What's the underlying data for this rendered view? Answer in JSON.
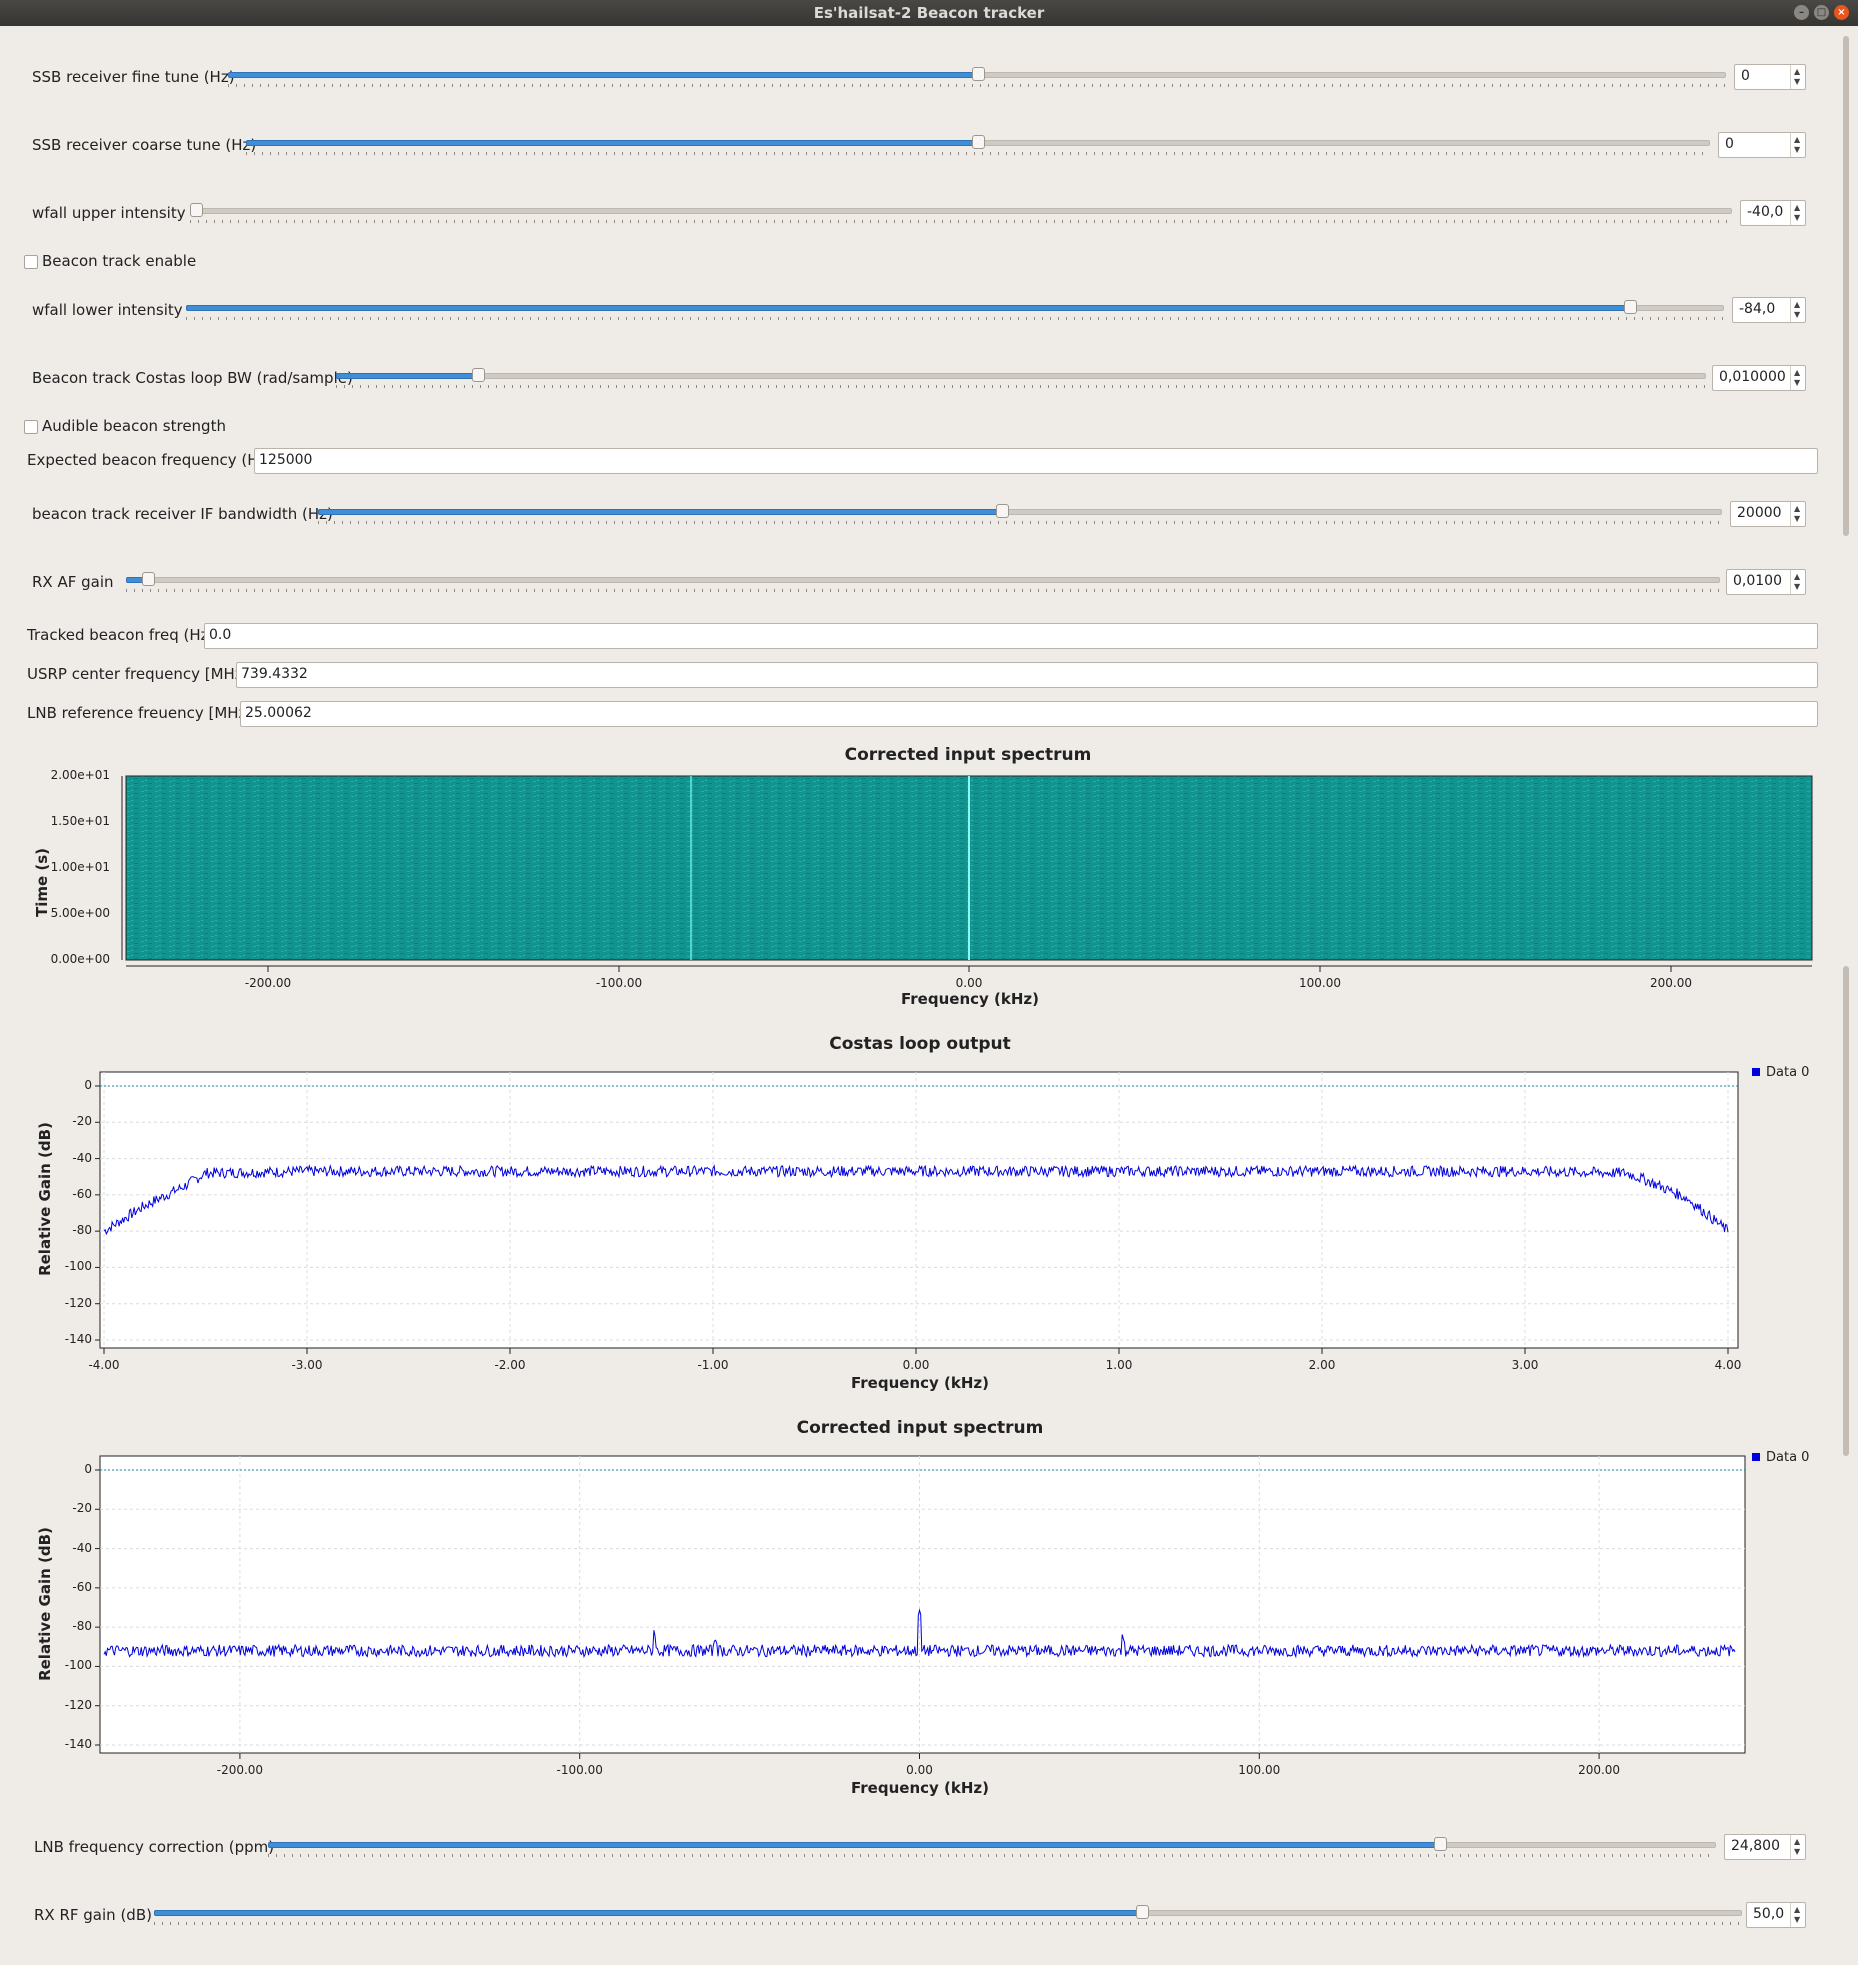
{
  "window": {
    "title": "Es'hailsat-2 Beacon tracker"
  },
  "controls": {
    "fine_tune": {
      "label": "SSB receiver fine tune (Hz)",
      "value": "0"
    },
    "coarse_tune": {
      "label": "SSB receiver coarse tune (Hz)",
      "value": "0"
    },
    "wfall_upper": {
      "label": "wfall upper intensity",
      "value": "-40,0"
    },
    "beacon_track_enable": {
      "label": "Beacon track enable",
      "checked": false
    },
    "wfall_lower": {
      "label": "wfall lower intensity",
      "value": "-84,0"
    },
    "costas_bw": {
      "label": "Beacon track Costas loop BW (rad/sample)",
      "value": "0,010000"
    },
    "audible_strength": {
      "label": "Audible beacon strength",
      "checked": false
    },
    "expected_freq": {
      "label": "Expected beacon frequency (Hz):",
      "value": "125000"
    },
    "if_bandwidth": {
      "label": "beacon track receiver IF bandwidth (Hz)",
      "value": "20000"
    },
    "rx_af_gain": {
      "label": "RX AF gain",
      "value": "0,0100"
    },
    "tracked_freq": {
      "label": "Tracked beacon freq (Hz):",
      "value": "0.0"
    },
    "usrp_center": {
      "label": "USRP center frequency [MHz]:",
      "value": "739.4332"
    },
    "lnb_ref": {
      "label": "LNB reference freuency [MHz]:",
      "value": "25.00062"
    },
    "lnb_correction": {
      "label": "LNB frequency correction (ppm)",
      "value": "24,800"
    },
    "rx_rf_gain": {
      "label": "RX RF gain (dB)",
      "value": "50,0"
    }
  },
  "waterfall": {
    "title": "Corrected input spectrum",
    "xlabel": "Frequency (kHz)",
    "ylabel": "Time (s)",
    "yticks": [
      "2.00e+01",
      "1.50e+01",
      "1.00e+01",
      "5.00e+00",
      "0.00e+00"
    ],
    "xticks": [
      "-200.00",
      "-100.00",
      "0.00",
      "100.00",
      "200.00"
    ],
    "colors": {
      "background": "#11948f",
      "line": "#7ff2ea"
    }
  },
  "chart_data": [
    {
      "type": "line",
      "title": "Costas loop output",
      "xlabel": "Frequency (kHz)",
      "ylabel": "Relative Gain (dB)",
      "xlim": [
        -4.0,
        4.0
      ],
      "ylim": [
        -140,
        0
      ],
      "xticks": [
        "-4.00",
        "-3.00",
        "-2.00",
        "-1.00",
        "0.00",
        "1.00",
        "2.00",
        "3.00",
        "4.00"
      ],
      "yticks": [
        "0",
        "-20",
        "-40",
        "-60",
        "-80",
        "-100",
        "-120",
        "-140"
      ],
      "series": [
        {
          "name": "Data 0",
          "color": "#0000dd",
          "x": [
            -4.0,
            -3.8,
            -3.6,
            -3.5,
            -3.0,
            -2.0,
            -1.0,
            0.0,
            1.0,
            2.0,
            3.0,
            3.5,
            3.6,
            3.8,
            4.0
          ],
          "y": [
            -80,
            -66,
            -55,
            -48,
            -47,
            -47,
            -47,
            -47,
            -47,
            -47,
            -47,
            -48,
            -52,
            -62,
            -80
          ]
        }
      ],
      "reference_line": 0,
      "legend": "top-right"
    },
    {
      "type": "line",
      "title": "Corrected input spectrum",
      "xlabel": "Frequency (kHz)",
      "ylabel": "Relative Gain (dB)",
      "xlim": [
        -240,
        240
      ],
      "ylim": [
        -140,
        0
      ],
      "xticks": [
        "-200.00",
        "-100.00",
        "0.00",
        "100.00",
        "200.00"
      ],
      "yticks": [
        "0",
        "-20",
        "-40",
        "-60",
        "-80",
        "-100",
        "-120",
        "-140"
      ],
      "series": [
        {
          "name": "Data 0",
          "color": "#0000dd",
          "x": [
            -240,
            -78,
            -60,
            0,
            60,
            240
          ],
          "y": [
            -92,
            -82,
            -86,
            -74,
            -86,
            -92
          ]
        }
      ],
      "reference_line": 0,
      "legend": "top-right"
    }
  ]
}
